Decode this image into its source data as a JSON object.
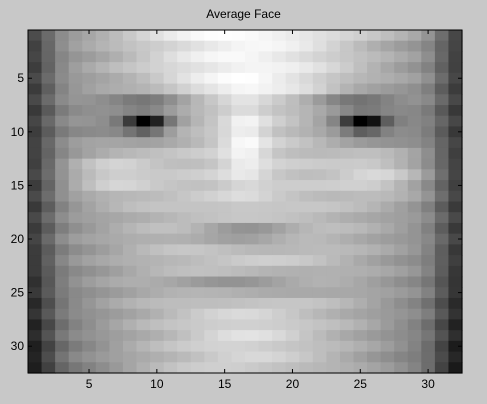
{
  "window": {
    "title": "Average Face"
  },
  "chart_data": {
    "type": "heatmap",
    "title": "Average Face",
    "xlabel": "",
    "ylabel": "",
    "colormap": "gray",
    "xlim": [
      0.5,
      32.5
    ],
    "ylim": [
      0.5,
      32.5
    ],
    "y_reversed": true,
    "x_ticks": [
      5,
      10,
      15,
      20,
      25,
      30
    ],
    "y_ticks": [
      5,
      10,
      15,
      20,
      25,
      30
    ],
    "x_tick_labels": [
      "5",
      "10",
      "15",
      "20",
      "25",
      "30"
    ],
    "y_tick_labels": [
      "5",
      "10",
      "15",
      "20",
      "25",
      "30"
    ],
    "grid": false,
    "rows": 32,
    "cols": 32
  }
}
